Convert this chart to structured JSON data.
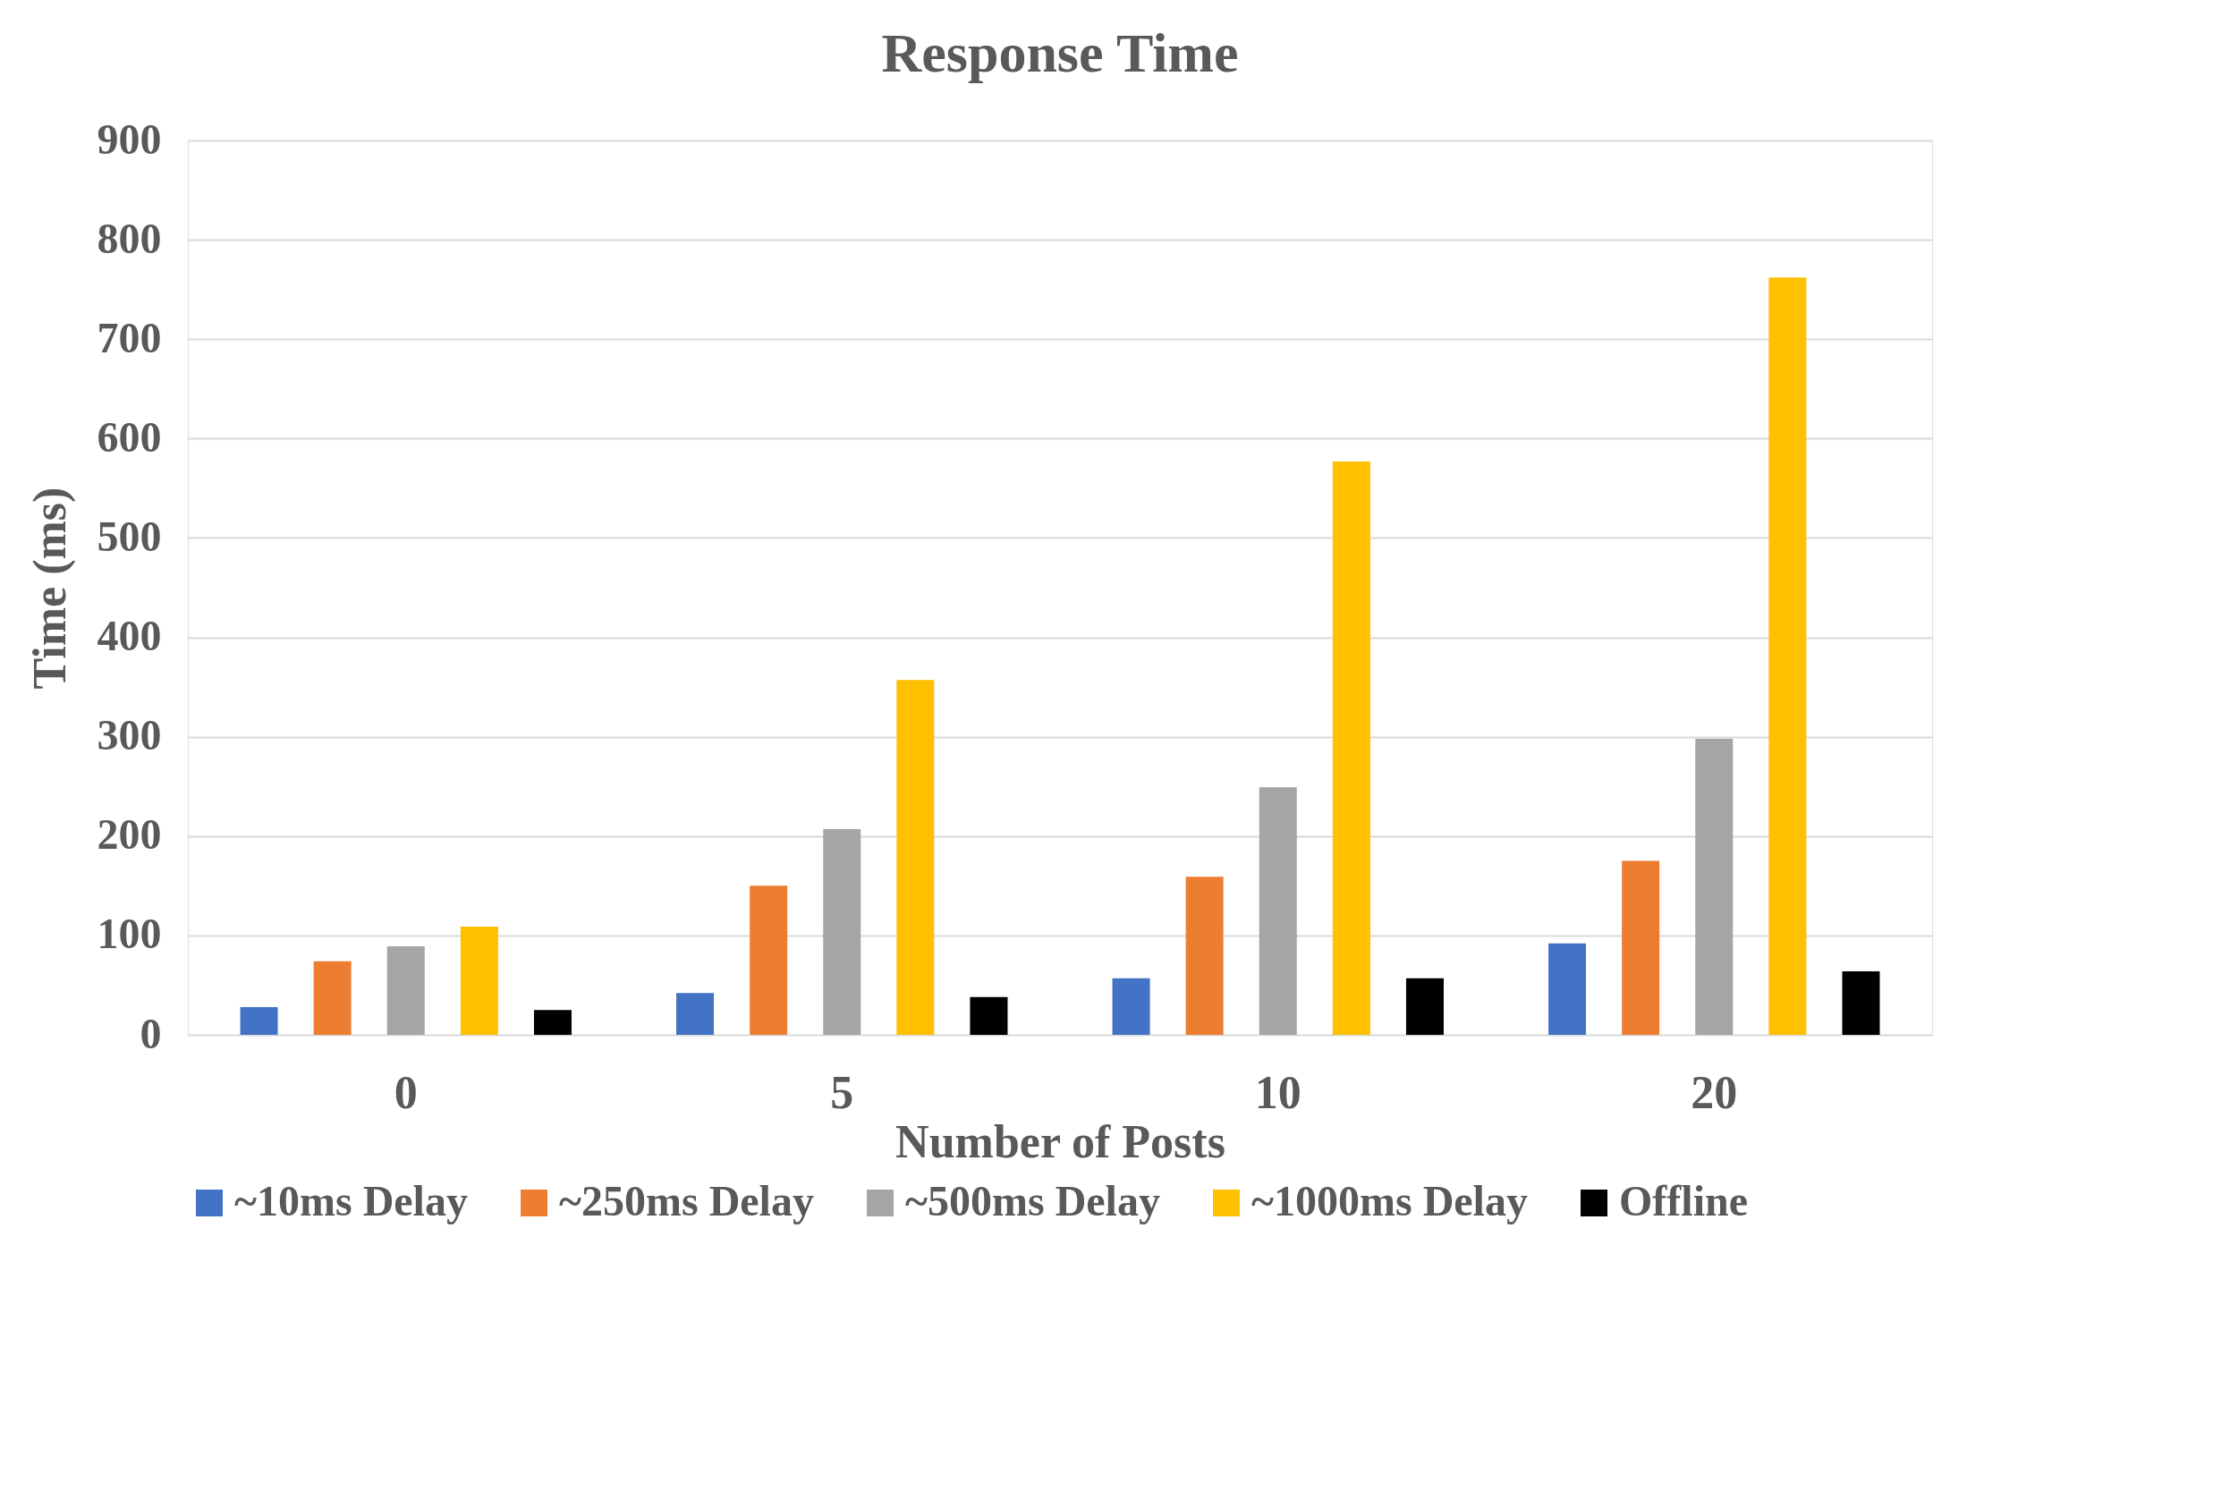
{
  "chart_data": {
    "type": "bar",
    "title": "Response Time",
    "xlabel": "Number of Posts",
    "ylabel": "Time (ms)",
    "categories": [
      "0",
      "5",
      "10",
      "20"
    ],
    "series": [
      {
        "name": "~10ms Delay",
        "color": "#4472c4",
        "values": [
          28,
          42,
          57,
          92
        ]
      },
      {
        "name": "~250ms Delay",
        "color": "#ed7d31",
        "values": [
          74,
          150,
          159,
          175
        ]
      },
      {
        "name": "~500ms Delay",
        "color": "#a5a5a5",
        "values": [
          89,
          207,
          249,
          298
        ]
      },
      {
        "name": "~1000ms Delay",
        "color": "#ffc000",
        "values": [
          109,
          357,
          577,
          762
        ]
      },
      {
        "name": "Offline",
        "color": "#000000",
        "values": [
          25,
          38,
          57,
          64
        ]
      }
    ],
    "ylim": [
      0,
      900
    ],
    "yticks": [
      0,
      100,
      200,
      300,
      400,
      500,
      600,
      700,
      800,
      900
    ],
    "grid": "y",
    "legend": "bottom"
  }
}
